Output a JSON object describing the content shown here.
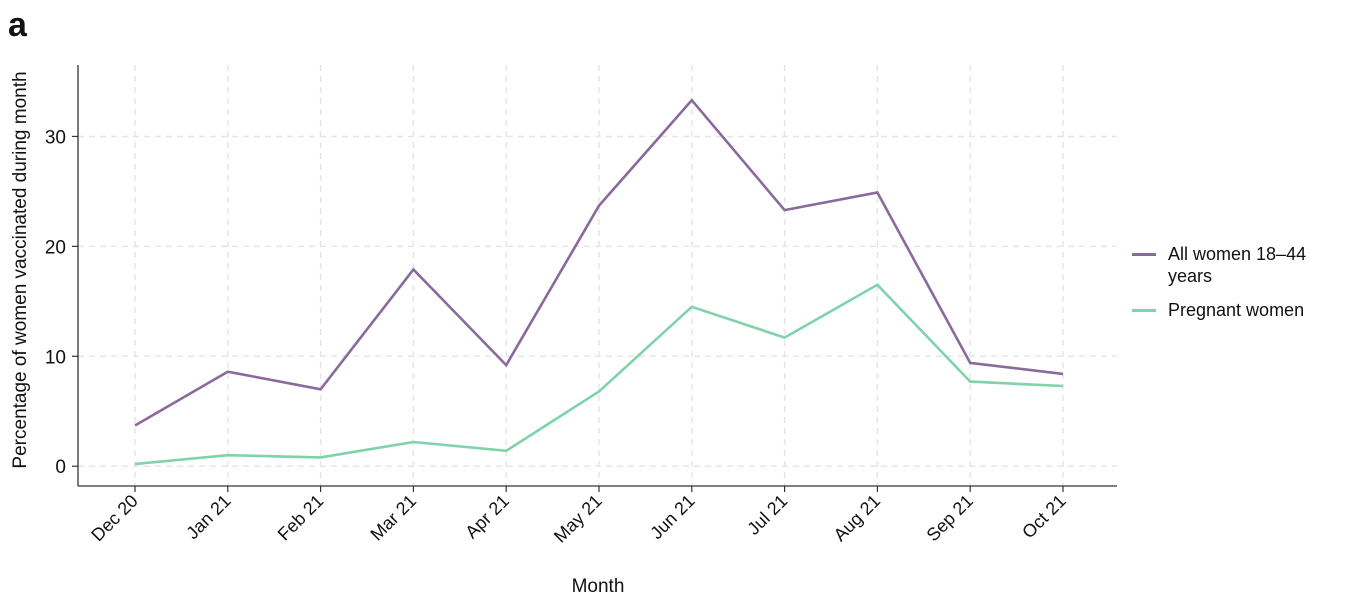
{
  "panel_label": "a",
  "chart_data": {
    "type": "line",
    "categories": [
      "Dec 20",
      "Jan 21",
      "Feb 21",
      "Mar 21",
      "Apr 21",
      "May 21",
      "Jun 21",
      "Jul 21",
      "Aug 21",
      "Sep 21",
      "Oct 21"
    ],
    "series": [
      {
        "name": "All women 18–44 years",
        "color": "#8a6a9c",
        "values": [
          3.7,
          8.6,
          7.0,
          17.9,
          9.2,
          23.7,
          33.3,
          23.3,
          24.9,
          9.4,
          8.4
        ]
      },
      {
        "name": "Pregnant women",
        "color": "#7fd3aa",
        "values": [
          0.2,
          1.0,
          0.8,
          2.2,
          1.4,
          6.8,
          14.5,
          11.7,
          16.5,
          7.7,
          7.3
        ]
      }
    ],
    "title": "",
    "xlabel": "Month",
    "ylabel": "Percentage of women vaccinated during month",
    "ylim": [
      -1.8,
      36.5
    ],
    "yticks": [
      0,
      10,
      20,
      30
    ],
    "grid": true,
    "legend_position": "right"
  }
}
